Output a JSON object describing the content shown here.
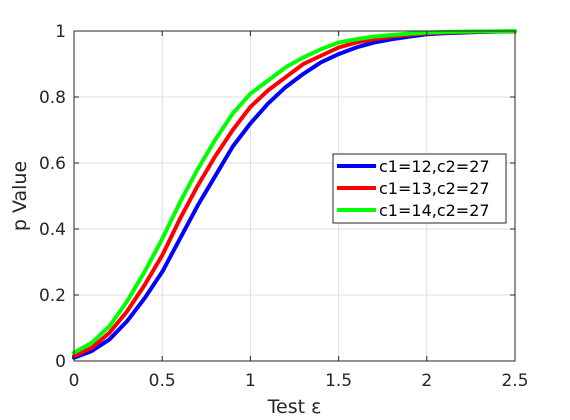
{
  "chart_data": {
    "type": "line",
    "title": "",
    "xlabel": "Test ε",
    "ylabel": "p Value",
    "xlim": [
      0,
      2.5
    ],
    "ylim": [
      0,
      1
    ],
    "xticks": [
      0,
      0.5,
      1,
      1.5,
      2,
      2.5
    ],
    "xtick_labels": [
      "0",
      "0.5",
      "1",
      "1.5",
      "2",
      "2.5"
    ],
    "yticks": [
      0,
      0.2,
      0.4,
      0.6,
      0.8,
      1
    ],
    "ytick_labels": [
      "0",
      "0.2",
      "0.4",
      "0.6",
      "0.8",
      "1"
    ],
    "grid": true,
    "legend_position": "right",
    "x": [
      0,
      0.1,
      0.2,
      0.3,
      0.4,
      0.5,
      0.6,
      0.7,
      0.8,
      0.9,
      1.0,
      1.1,
      1.2,
      1.3,
      1.4,
      1.5,
      1.6,
      1.7,
      1.8,
      1.9,
      2.0,
      2.1,
      2.2,
      2.3,
      2.4,
      2.5
    ],
    "series": [
      {
        "name": "c1=12,c2=27",
        "color": "#0000ff",
        "values": [
          0.01,
          0.03,
          0.065,
          0.12,
          0.19,
          0.27,
          0.37,
          0.47,
          0.56,
          0.65,
          0.72,
          0.78,
          0.83,
          0.87,
          0.905,
          0.93,
          0.95,
          0.965,
          0.975,
          0.983,
          0.99,
          0.993,
          0.995,
          0.997,
          0.998,
          0.999
        ]
      },
      {
        "name": "c1=13,c2=27",
        "color": "#ff0000",
        "values": [
          0.015,
          0.04,
          0.085,
          0.15,
          0.23,
          0.32,
          0.43,
          0.53,
          0.62,
          0.7,
          0.77,
          0.82,
          0.86,
          0.9,
          0.925,
          0.95,
          0.965,
          0.975,
          0.983,
          0.989,
          0.993,
          0.995,
          0.997,
          0.998,
          0.999,
          0.999
        ]
      },
      {
        "name": "c1=14,c2=27",
        "color": "#00ff00",
        "values": [
          0.025,
          0.055,
          0.105,
          0.18,
          0.27,
          0.37,
          0.48,
          0.58,
          0.67,
          0.75,
          0.81,
          0.85,
          0.89,
          0.92,
          0.945,
          0.965,
          0.975,
          0.983,
          0.988,
          0.992,
          0.995,
          0.997,
          0.998,
          0.999,
          0.999,
          1.0
        ]
      }
    ]
  }
}
